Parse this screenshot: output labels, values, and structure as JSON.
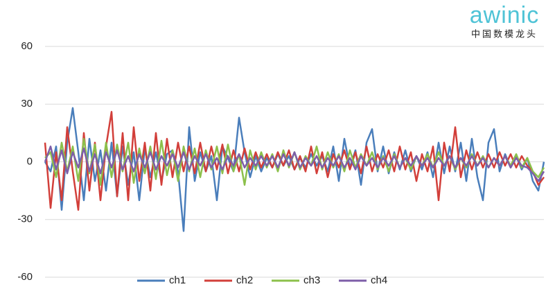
{
  "chart_data": {
    "type": "line",
    "categories": [
      null,
      null,
      null,
      null,
      null,
      null,
      null,
      null,
      null,
      null,
      null,
      null,
      null,
      null,
      null,
      null,
      null,
      null,
      null,
      null,
      null,
      null,
      null,
      null,
      null,
      null,
      null,
      null,
      null,
      null,
      null,
      null,
      null,
      null,
      null,
      null,
      null,
      null,
      null,
      null,
      null,
      null,
      null,
      null,
      null,
      null,
      null,
      null,
      null,
      null,
      null,
      null,
      null,
      null,
      null,
      null,
      null,
      null,
      null,
      null,
      null,
      null,
      null,
      null,
      null,
      null,
      null,
      null,
      null,
      null,
      null,
      null,
      null,
      null,
      null,
      null,
      null,
      null,
      null,
      null,
      null,
      null,
      null,
      null,
      null,
      null,
      null,
      null,
      null,
      null,
      null
    ],
    "series": [
      {
        "name": "ch1",
        "color": "#4a7ebb",
        "values": [
          0,
          -5,
          8,
          -25,
          10,
          28,
          5,
          -20,
          12,
          -10,
          6,
          -15,
          10,
          -18,
          8,
          -12,
          5,
          -20,
          7,
          -8,
          5,
          -10,
          4,
          6,
          -5,
          -36,
          18,
          -10,
          5,
          -5,
          3,
          -20,
          8,
          2,
          -5,
          23,
          5,
          -8,
          3,
          -5,
          2,
          -3,
          4,
          -2,
          3,
          -4,
          2,
          -3,
          4,
          -2,
          3,
          -5,
          8,
          -10,
          12,
          -3,
          6,
          -12,
          10,
          17,
          -5,
          8,
          -6,
          5,
          -4,
          6,
          -5,
          3,
          -4,
          5,
          -8,
          10,
          -6,
          8,
          -5,
          10,
          -10,
          12,
          -8,
          -20,
          10,
          17,
          -5,
          4,
          -3,
          3,
          -4,
          2,
          -10,
          -15,
          0
        ]
      },
      {
        "name": "ch2",
        "color": "#d23f3a",
        "values": [
          10,
          -24,
          5,
          -20,
          18,
          -5,
          -25,
          15,
          -15,
          10,
          -20,
          8,
          26,
          -18,
          15,
          -20,
          18,
          -10,
          10,
          -15,
          15,
          -12,
          12,
          -8,
          10,
          -5,
          8,
          -6,
          10,
          -5,
          8,
          -4,
          9,
          -6,
          6,
          -5,
          7,
          -4,
          5,
          -3,
          4,
          -3,
          5,
          -2,
          6,
          -4,
          3,
          -5,
          8,
          -6,
          5,
          -8,
          4,
          -3,
          6,
          -4,
          5,
          -6,
          8,
          -5,
          4,
          -3,
          6,
          -5,
          8,
          -4,
          5,
          -10,
          4,
          -5,
          8,
          -20,
          10,
          -5,
          18,
          -8,
          6,
          -4,
          5,
          -3,
          4,
          -3,
          5,
          -2,
          4,
          -3,
          3,
          -2,
          -5,
          -12,
          -8
        ]
      },
      {
        "name": "ch3",
        "color": "#8cc04b",
        "values": [
          2,
          5,
          -8,
          10,
          -5,
          8,
          -10,
          12,
          -6,
          9,
          -12,
          10,
          -8,
          9,
          -5,
          10,
          -11,
          7,
          -6,
          8,
          -9,
          11,
          -7,
          6,
          -10,
          8,
          -5,
          7,
          -8,
          6,
          -4,
          8,
          -6,
          9,
          -5,
          4,
          -12,
          6,
          -4,
          5,
          -3,
          4,
          -5,
          6,
          -3,
          5,
          -4,
          3,
          -2,
          8,
          -4,
          5,
          -3,
          4,
          -5,
          6,
          -3,
          4,
          -2,
          5,
          -4,
          3,
          -5,
          4,
          -3,
          2,
          -4,
          3,
          -2,
          4,
          -3,
          5,
          -2,
          3,
          -4,
          2,
          -3,
          4,
          -2,
          3,
          -3,
          2,
          -2,
          3,
          -2,
          4,
          -3,
          2,
          -5,
          -8,
          -3
        ]
      },
      {
        "name": "ch4",
        "color": "#7d5ea8",
        "values": [
          0,
          8,
          -4,
          6,
          -6,
          5,
          -3,
          7,
          -5,
          4,
          -6,
          5,
          -3,
          6,
          -4,
          3,
          -5,
          4,
          -3,
          5,
          -4,
          3,
          -2,
          4,
          -3,
          5,
          -4,
          3,
          -2,
          4,
          -3,
          2,
          -4,
          3,
          -2,
          4,
          -3,
          2,
          -2,
          3,
          -2,
          3,
          -3,
          4,
          -2,
          5,
          -3,
          2,
          -2,
          3,
          -3,
          2,
          -2,
          3,
          -3,
          2,
          -4,
          3,
          -2,
          2,
          -3,
          2,
          -2,
          3,
          -3,
          2,
          -2,
          3,
          -2,
          2,
          -3,
          2,
          -2,
          3,
          -3,
          2,
          -2,
          3,
          -2,
          2,
          -3,
          2,
          -2,
          3,
          -3,
          2,
          -2,
          -3,
          -6,
          -10,
          -5
        ]
      }
    ],
    "ylim": [
      -60,
      60
    ],
    "yticks": [
      -60,
      -30,
      0,
      30,
      60
    ],
    "grid": true,
    "legend": "bottom"
  },
  "logo": {
    "brand": "awinic",
    "tagline": "中国数模龙头"
  }
}
